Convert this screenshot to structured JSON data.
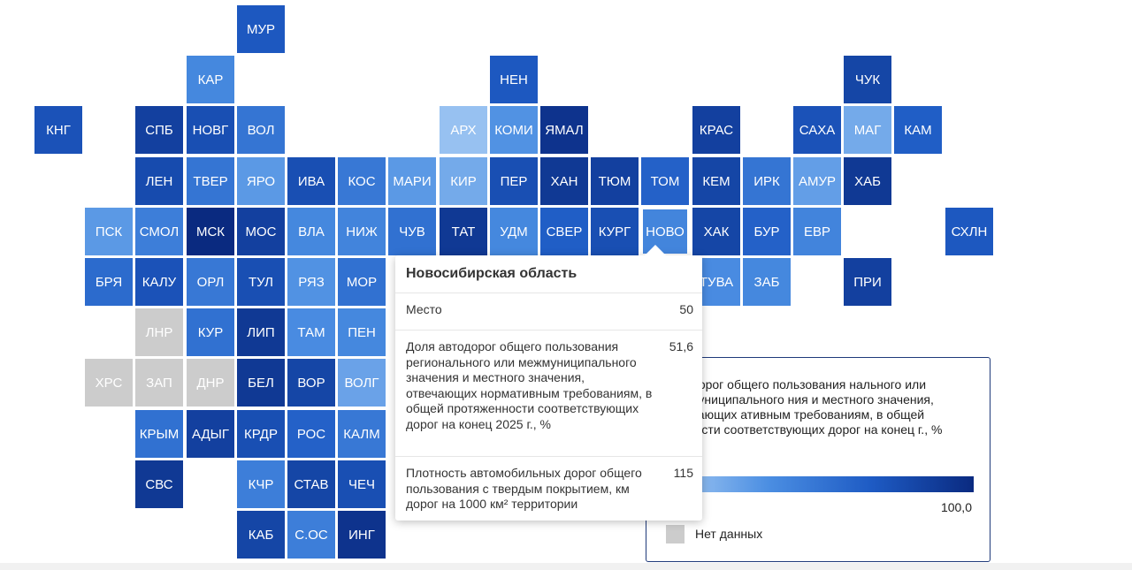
{
  "map": {
    "tiles": [
      {
        "id": "МУР",
        "label": "МУР",
        "value": 75,
        "nodata": false
      },
      {
        "id": "КАР",
        "label": "КАР",
        "value": 50,
        "nodata": false
      },
      {
        "id": "НЕН",
        "label": "НЕН",
        "value": 75,
        "nodata": false
      },
      {
        "id": "ЧУК",
        "label": "ЧУК",
        "value": 85,
        "nodata": false
      },
      {
        "id": "КНГ",
        "label": "КНГ",
        "value": 78,
        "nodata": false
      },
      {
        "id": "СПБ",
        "label": "СПБ",
        "value": 88,
        "nodata": false
      },
      {
        "id": "НОВГ",
        "label": "НОВГ",
        "value": 80,
        "nodata": false
      },
      {
        "id": "ВОЛ",
        "label": "ВОЛ",
        "value": 60,
        "nodata": false
      },
      {
        "id": "АРХ",
        "label": "АРХ",
        "value": 25,
        "nodata": false
      },
      {
        "id": "КОМИ",
        "label": "КОМИ",
        "value": 45,
        "nodata": false
      },
      {
        "id": "ЯМАЛ",
        "label": "ЯМАЛ",
        "value": 95,
        "nodata": false
      },
      {
        "id": "КРАС",
        "label": "КРАС",
        "value": 88,
        "nodata": false
      },
      {
        "id": "САХА",
        "label": "САХА",
        "value": 78,
        "nodata": false
      },
      {
        "id": "МАГ",
        "label": "МАГ",
        "value": 35,
        "nodata": false
      },
      {
        "id": "КАМ",
        "label": "КАМ",
        "value": 72,
        "nodata": false
      },
      {
        "id": "ЛЕН",
        "label": "ЛЕН",
        "value": 82,
        "nodata": false
      },
      {
        "id": "ТВЕР",
        "label": "ТВЕР",
        "value": 60,
        "nodata": false
      },
      {
        "id": "ЯРО",
        "label": "ЯРО",
        "value": 42,
        "nodata": false
      },
      {
        "id": "ИВА",
        "label": "ИВА",
        "value": 80,
        "nodata": false
      },
      {
        "id": "КОС",
        "label": "КОС",
        "value": 58,
        "nodata": false
      },
      {
        "id": "МАРИ",
        "label": "МАРИ",
        "value": 42,
        "nodata": false
      },
      {
        "id": "КИР",
        "label": "КИР",
        "value": 35,
        "nodata": false
      },
      {
        "id": "ПЕР",
        "label": "ПЕР",
        "value": 80,
        "nodata": false
      },
      {
        "id": "ХАН",
        "label": "ХАН",
        "value": 92,
        "nodata": false
      },
      {
        "id": "ТЮМ",
        "label": "ТЮМ",
        "value": 88,
        "nodata": false
      },
      {
        "id": "ТОМ",
        "label": "ТОМ",
        "value": 70,
        "nodata": false
      },
      {
        "id": "КЕМ",
        "label": "КЕМ",
        "value": 85,
        "nodata": false
      },
      {
        "id": "ИРК",
        "label": "ИРК",
        "value": 60,
        "nodata": false
      },
      {
        "id": "АМУР",
        "label": "АМУР",
        "value": 40,
        "nodata": false
      },
      {
        "id": "ХАБ",
        "label": "ХАБ",
        "value": 92,
        "nodata": false
      },
      {
        "id": "ПСК",
        "label": "ПСК",
        "value": 42,
        "nodata": false
      },
      {
        "id": "СМОЛ",
        "label": "СМОЛ",
        "value": 55,
        "nodata": false
      },
      {
        "id": "МСК",
        "label": "МСК",
        "value": 100,
        "nodata": false
      },
      {
        "id": "МОС",
        "label": "МОС",
        "value": 88,
        "nodata": false
      },
      {
        "id": "ВЛА",
        "label": "ВЛА",
        "value": 50,
        "nodata": false
      },
      {
        "id": "НИЖ",
        "label": "НИЖ",
        "value": 52,
        "nodata": false
      },
      {
        "id": "ЧУВ",
        "label": "ЧУВ",
        "value": 62,
        "nodata": false
      },
      {
        "id": "ТАТ",
        "label": "ТАТ",
        "value": 92,
        "nodata": false
      },
      {
        "id": "УДМ",
        "label": "УДМ",
        "value": 50,
        "nodata": false
      },
      {
        "id": "СВЕР",
        "label": "СВЕР",
        "value": 72,
        "nodata": false
      },
      {
        "id": "КУРГ",
        "label": "КУРГ",
        "value": 80,
        "nodata": false
      },
      {
        "id": "НОВО",
        "label": "НОВО",
        "value": 51.6,
        "nodata": false
      },
      {
        "id": "ХАК",
        "label": "ХАК",
        "value": 85,
        "nodata": false
      },
      {
        "id": "БУР",
        "label": "БУР",
        "value": 70,
        "nodata": false
      },
      {
        "id": "ЕВР",
        "label": "ЕВР",
        "value": 52,
        "nodata": false
      },
      {
        "id": "СХЛН",
        "label": "СХЛН",
        "value": 75,
        "nodata": false
      },
      {
        "id": "БРЯ",
        "label": "БРЯ",
        "value": 65,
        "nodata": false
      },
      {
        "id": "КАЛУ",
        "label": "КАЛУ",
        "value": 78,
        "nodata": false
      },
      {
        "id": "ОРЛ",
        "label": "ОРЛ",
        "value": 58,
        "nodata": false
      },
      {
        "id": "ТУЛ",
        "label": "ТУЛ",
        "value": 80,
        "nodata": false
      },
      {
        "id": "РЯЗ",
        "label": "РЯЗ",
        "value": 45,
        "nodata": false
      },
      {
        "id": "МОР",
        "label": "МОР",
        "value": 62,
        "nodata": false
      },
      {
        "id": "ТУВА",
        "label": "ТУВА",
        "value": 48,
        "nodata": false
      },
      {
        "id": "ЗАБ",
        "label": "ЗАБ",
        "value": 50,
        "nodata": false
      },
      {
        "id": "ПРИ",
        "label": "ПРИ",
        "value": 88,
        "nodata": false
      },
      {
        "id": "ЛНР",
        "label": "ЛНР",
        "value": null,
        "nodata": true
      },
      {
        "id": "КУР",
        "label": "КУР",
        "value": 62,
        "nodata": false
      },
      {
        "id": "ЛИП",
        "label": "ЛИП",
        "value": 92,
        "nodata": false
      },
      {
        "id": "ТАМ",
        "label": "ТАМ",
        "value": 48,
        "nodata": false
      },
      {
        "id": "ПЕН",
        "label": "ПЕН",
        "value": 50,
        "nodata": false
      },
      {
        "id": "ХРС",
        "label": "ХРС",
        "value": null,
        "nodata": true
      },
      {
        "id": "ЗАП",
        "label": "ЗАП",
        "value": null,
        "nodata": true
      },
      {
        "id": "ДНР",
        "label": "ДНР",
        "value": null,
        "nodata": true
      },
      {
        "id": "БЕЛ",
        "label": "БЕЛ",
        "value": 92,
        "nodata": false
      },
      {
        "id": "ВОР",
        "label": "ВОР",
        "value": 85,
        "nodata": false
      },
      {
        "id": "ВОЛГ",
        "label": "ВОЛГ",
        "value": 38,
        "nodata": false
      },
      {
        "id": "КРЫМ",
        "label": "КРЫМ",
        "value": 62,
        "nodata": false
      },
      {
        "id": "АДЫГ",
        "label": "АДЫГ",
        "value": 88,
        "nodata": false
      },
      {
        "id": "КРДР",
        "label": "КРДР",
        "value": 80,
        "nodata": false
      },
      {
        "id": "РОС",
        "label": "РОС",
        "value": 70,
        "nodata": false
      },
      {
        "id": "КАЛМ",
        "label": "КАЛМ",
        "value": 58,
        "nodata": false
      },
      {
        "id": "СВС",
        "label": "СВС",
        "value": 92,
        "nodata": false
      },
      {
        "id": "КЧР",
        "label": "КЧР",
        "value": 55,
        "nodata": false
      },
      {
        "id": "СТАВ",
        "label": "СТАВ",
        "value": 85,
        "nodata": false
      },
      {
        "id": "ЧЕЧ",
        "label": "ЧЕЧ",
        "value": 80,
        "nodata": false
      },
      {
        "id": "КАБ",
        "label": "КАБ",
        "value": 85,
        "nodata": false
      },
      {
        "id": "С.ОС",
        "label": "С.ОС",
        "value": 55,
        "nodata": false
      },
      {
        "id": "ИНГ",
        "label": "ИНГ",
        "value": 95,
        "nodata": false
      }
    ],
    "hovered": "НОВО"
  },
  "tooltip": {
    "title": "Новосибирская область",
    "rows": [
      {
        "label": "Место",
        "value": "50"
      },
      {
        "label": "Доля автодорог общего пользования регионального или межмуниципального значения и местного значения, отвечающих нормативным требованиям, в общей протяженности соответствующих дорог на конец 2025 г., %",
        "value": "51,6"
      },
      {
        "label": "Плотность автомобильных дорог общего пользования с твердым покрытием, км дорог на 1000 км² территории",
        "value": "115"
      }
    ]
  },
  "legend": {
    "title": "автодорог общего пользования нального или межмуниципального ния и местного значения, отвечающих ативным требованиям, в общей женности соответствующих дорог на конец г., %",
    "min_label": "",
    "max_label": "100,0",
    "nodata_label": "Нет данных",
    "nodata_color": "#cccccc",
    "gradient_colors": [
      "#a9cdf4",
      "#4b8ee2",
      "#1e5bc4",
      "#0a2a80"
    ]
  }
}
